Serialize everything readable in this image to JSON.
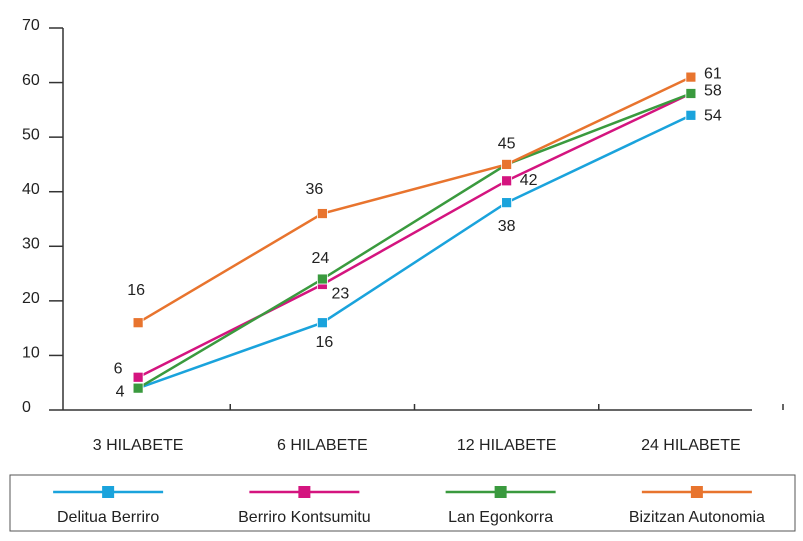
{
  "chart_data": {
    "type": "line",
    "categories": [
      "3 HILABETE",
      "6 HILABETE",
      "12 HILABETE",
      "24 HILABETE"
    ],
    "ylim": [
      0,
      70
    ],
    "yticks": [
      0,
      10,
      20,
      30,
      40,
      50,
      60,
      70
    ],
    "legend": "bottom",
    "series": [
      {
        "name": "Delitua Berriro",
        "color": "#1aa3dc",
        "values": [
          4,
          16,
          38,
          54
        ],
        "show_labels": [
          true,
          true,
          true,
          true
        ]
      },
      {
        "name": "Berriro Kontsumitu",
        "color": "#d4147f",
        "values": [
          6,
          23,
          42,
          58
        ],
        "show_labels": [
          true,
          true,
          true,
          true
        ]
      },
      {
        "name": "Lan Egonkorra",
        "color": "#3a9a3e",
        "values": [
          4,
          24,
          45,
          58
        ],
        "show_labels": [
          false,
          true,
          true,
          false
        ]
      },
      {
        "name": "Bizitzan Autonomia",
        "color": "#e8742e",
        "values": [
          16,
          36,
          45,
          61
        ],
        "show_labels": [
          true,
          true,
          false,
          true
        ]
      }
    ]
  }
}
